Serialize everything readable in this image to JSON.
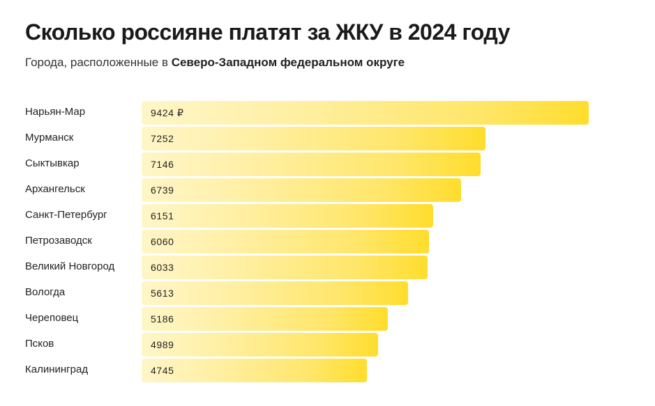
{
  "header": {
    "title": "Сколько россияне платят за ЖКУ в 2024 году",
    "subtitle_prefix": "Города, расположенные в ",
    "subtitle_bold": "Северо-Западном федеральном округе"
  },
  "colors": {
    "bar_start": "#fff6c8",
    "bar_end": "#ffdd2d",
    "text": "#1c1c1c"
  },
  "chart_data": {
    "type": "bar",
    "orientation": "horizontal",
    "categories": [
      "Нарьян-Мар",
      "Мурманск",
      "Сыктывкар",
      "Архангельск",
      "Санкт-Петербург",
      "Петрозаводск",
      "Великий Новгород",
      "Вологда",
      "Череповец",
      "Псков",
      "Калининград"
    ],
    "values": [
      9424,
      7252,
      7146,
      6739,
      6151,
      6060,
      6033,
      5613,
      5186,
      4989,
      4745
    ],
    "value_labels": [
      "9424 ₽",
      "7252",
      "7146",
      "6739",
      "6151",
      "6060",
      "6033",
      "5613",
      "5186",
      "4989",
      "4745"
    ],
    "title": "Сколько россияне платят за ЖКУ в 2024 году",
    "subtitle": "Города, расположенные в Северо-Западном федеральном округе",
    "xlabel": "",
    "ylabel": "",
    "grid": false,
    "legend": "none"
  }
}
